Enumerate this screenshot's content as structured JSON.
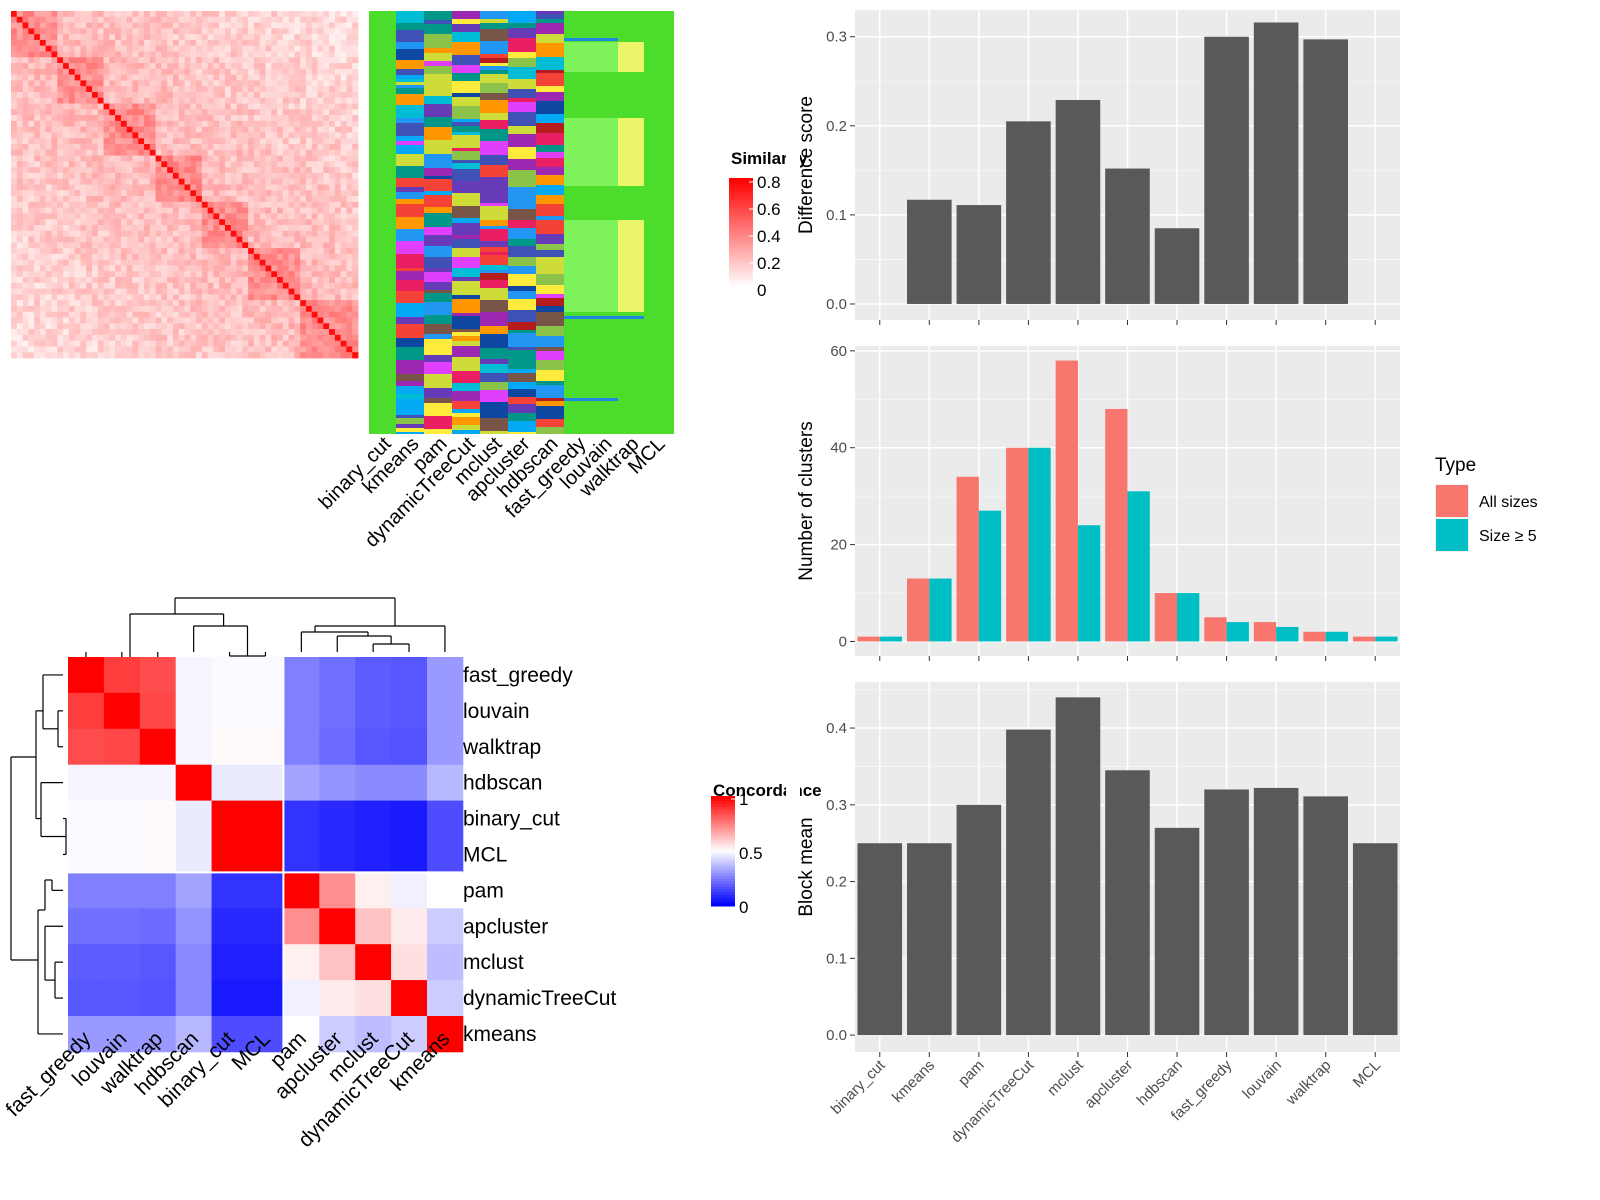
{
  "method_order_heatmap": [
    "binary_cut",
    "kmeans",
    "pam",
    "dynamicTreeCut",
    "mclust",
    "apcluster",
    "hdbscan",
    "fast_greedy",
    "louvain",
    "walktrap",
    "MCL"
  ],
  "similarity_legend": {
    "title": "Similarity",
    "ticks": [
      "0.8",
      "0.6",
      "0.4",
      "0.2",
      "0"
    ],
    "colors": [
      "#ffffff",
      "#ff0000"
    ]
  },
  "concordance": {
    "legend_title": "Concordance",
    "legend_ticks": [
      "1",
      "0.5",
      "0"
    ],
    "colors": {
      "low": "#0000ff",
      "mid": "#ffffff",
      "high": "#ff0000"
    },
    "rows": [
      "fast_greedy",
      "louvain",
      "walktrap",
      "hdbscan",
      "binary_cut",
      "MCL",
      "pam",
      "apcluster",
      "mclust",
      "dynamicTreeCut",
      "kmeans"
    ],
    "cols": [
      "fast_greedy",
      "louvain",
      "walktrap",
      "hdbscan",
      "binary_cut",
      "MCL",
      "pam",
      "apcluster",
      "mclust",
      "dynamicTreeCut",
      "kmeans"
    ],
    "matrix": [
      [
        1.0,
        0.88,
        0.85,
        0.48,
        0.49,
        0.49,
        0.25,
        0.22,
        0.18,
        0.17,
        0.3
      ],
      [
        0.88,
        1.0,
        0.86,
        0.48,
        0.49,
        0.49,
        0.25,
        0.22,
        0.18,
        0.17,
        0.3
      ],
      [
        0.85,
        0.86,
        1.0,
        0.48,
        0.51,
        0.51,
        0.25,
        0.21,
        0.17,
        0.16,
        0.3
      ],
      [
        0.48,
        0.48,
        0.48,
        1.0,
        0.46,
        0.46,
        0.32,
        0.29,
        0.27,
        0.27,
        0.36
      ],
      [
        0.49,
        0.49,
        0.51,
        0.46,
        1.0,
        1.0,
        0.1,
        0.08,
        0.06,
        0.05,
        0.15
      ],
      [
        0.49,
        0.49,
        0.51,
        0.46,
        1.0,
        1.0,
        0.1,
        0.08,
        0.06,
        0.05,
        0.15
      ],
      [
        0.25,
        0.25,
        0.25,
        0.32,
        0.1,
        0.1,
        1.0,
        0.72,
        0.53,
        0.47,
        0.5
      ],
      [
        0.22,
        0.22,
        0.21,
        0.29,
        0.08,
        0.08,
        0.72,
        1.0,
        0.62,
        0.54,
        0.4
      ],
      [
        0.18,
        0.18,
        0.17,
        0.27,
        0.06,
        0.06,
        0.53,
        0.62,
        1.0,
        0.56,
        0.37
      ],
      [
        0.17,
        0.17,
        0.16,
        0.27,
        0.05,
        0.05,
        0.47,
        0.54,
        0.56,
        1.0,
        0.4
      ],
      [
        0.3,
        0.3,
        0.3,
        0.36,
        0.15,
        0.15,
        0.5,
        0.4,
        0.37,
        0.4,
        1.0
      ]
    ]
  },
  "chart_data": [
    {
      "type": "bar",
      "categories": [
        "binary_cut",
        "kmeans",
        "pam",
        "dynamicTreeCut",
        "mclust",
        "apcluster",
        "hdbscan",
        "fast_greedy",
        "louvain",
        "walktrap",
        "MCL"
      ],
      "values": [
        0.0,
        0.117,
        0.111,
        0.205,
        0.229,
        0.152,
        0.085,
        0.3,
        0.316,
        0.297,
        0.0
      ],
      "ylabel": "Difference score",
      "yticks": [
        "0.0",
        "0.1",
        "0.2",
        "0.3"
      ],
      "ylim": [
        -0.018,
        0.33
      ],
      "color": "#595959"
    },
    {
      "type": "bar",
      "categories": [
        "binary_cut",
        "kmeans",
        "pam",
        "dynamicTreeCut",
        "mclust",
        "apcluster",
        "hdbscan",
        "fast_greedy",
        "louvain",
        "walktrap",
        "MCL"
      ],
      "series": [
        {
          "name": "All sizes",
          "color": "#F8766D",
          "values": [
            1,
            13,
            34,
            40,
            58,
            48,
            10,
            5,
            4,
            2,
            1
          ]
        },
        {
          "name": "Size ≥ 5",
          "color": "#00BFC4",
          "values": [
            1,
            13,
            27,
            40,
            24,
            31,
            10,
            4,
            3,
            2,
            1
          ]
        }
      ],
      "ylabel": "Number of clusters",
      "yticks": [
        "0",
        "20",
        "40",
        "60"
      ],
      "ylim": [
        -3,
        61
      ],
      "legend": {
        "title": "Type",
        "position": "right"
      }
    },
    {
      "type": "bar",
      "categories": [
        "binary_cut",
        "kmeans",
        "pam",
        "dynamicTreeCut",
        "mclust",
        "apcluster",
        "hdbscan",
        "fast_greedy",
        "louvain",
        "walktrap",
        "MCL"
      ],
      "values": [
        0.25,
        0.25,
        0.3,
        0.398,
        0.44,
        0.345,
        0.27,
        0.32,
        0.322,
        0.311,
        0.25
      ],
      "ylabel": "Block mean",
      "yticks": [
        "0.0",
        "0.1",
        "0.2",
        "0.3",
        "0.4"
      ],
      "ylim": [
        -0.022,
        0.46
      ],
      "color": "#595959"
    }
  ]
}
